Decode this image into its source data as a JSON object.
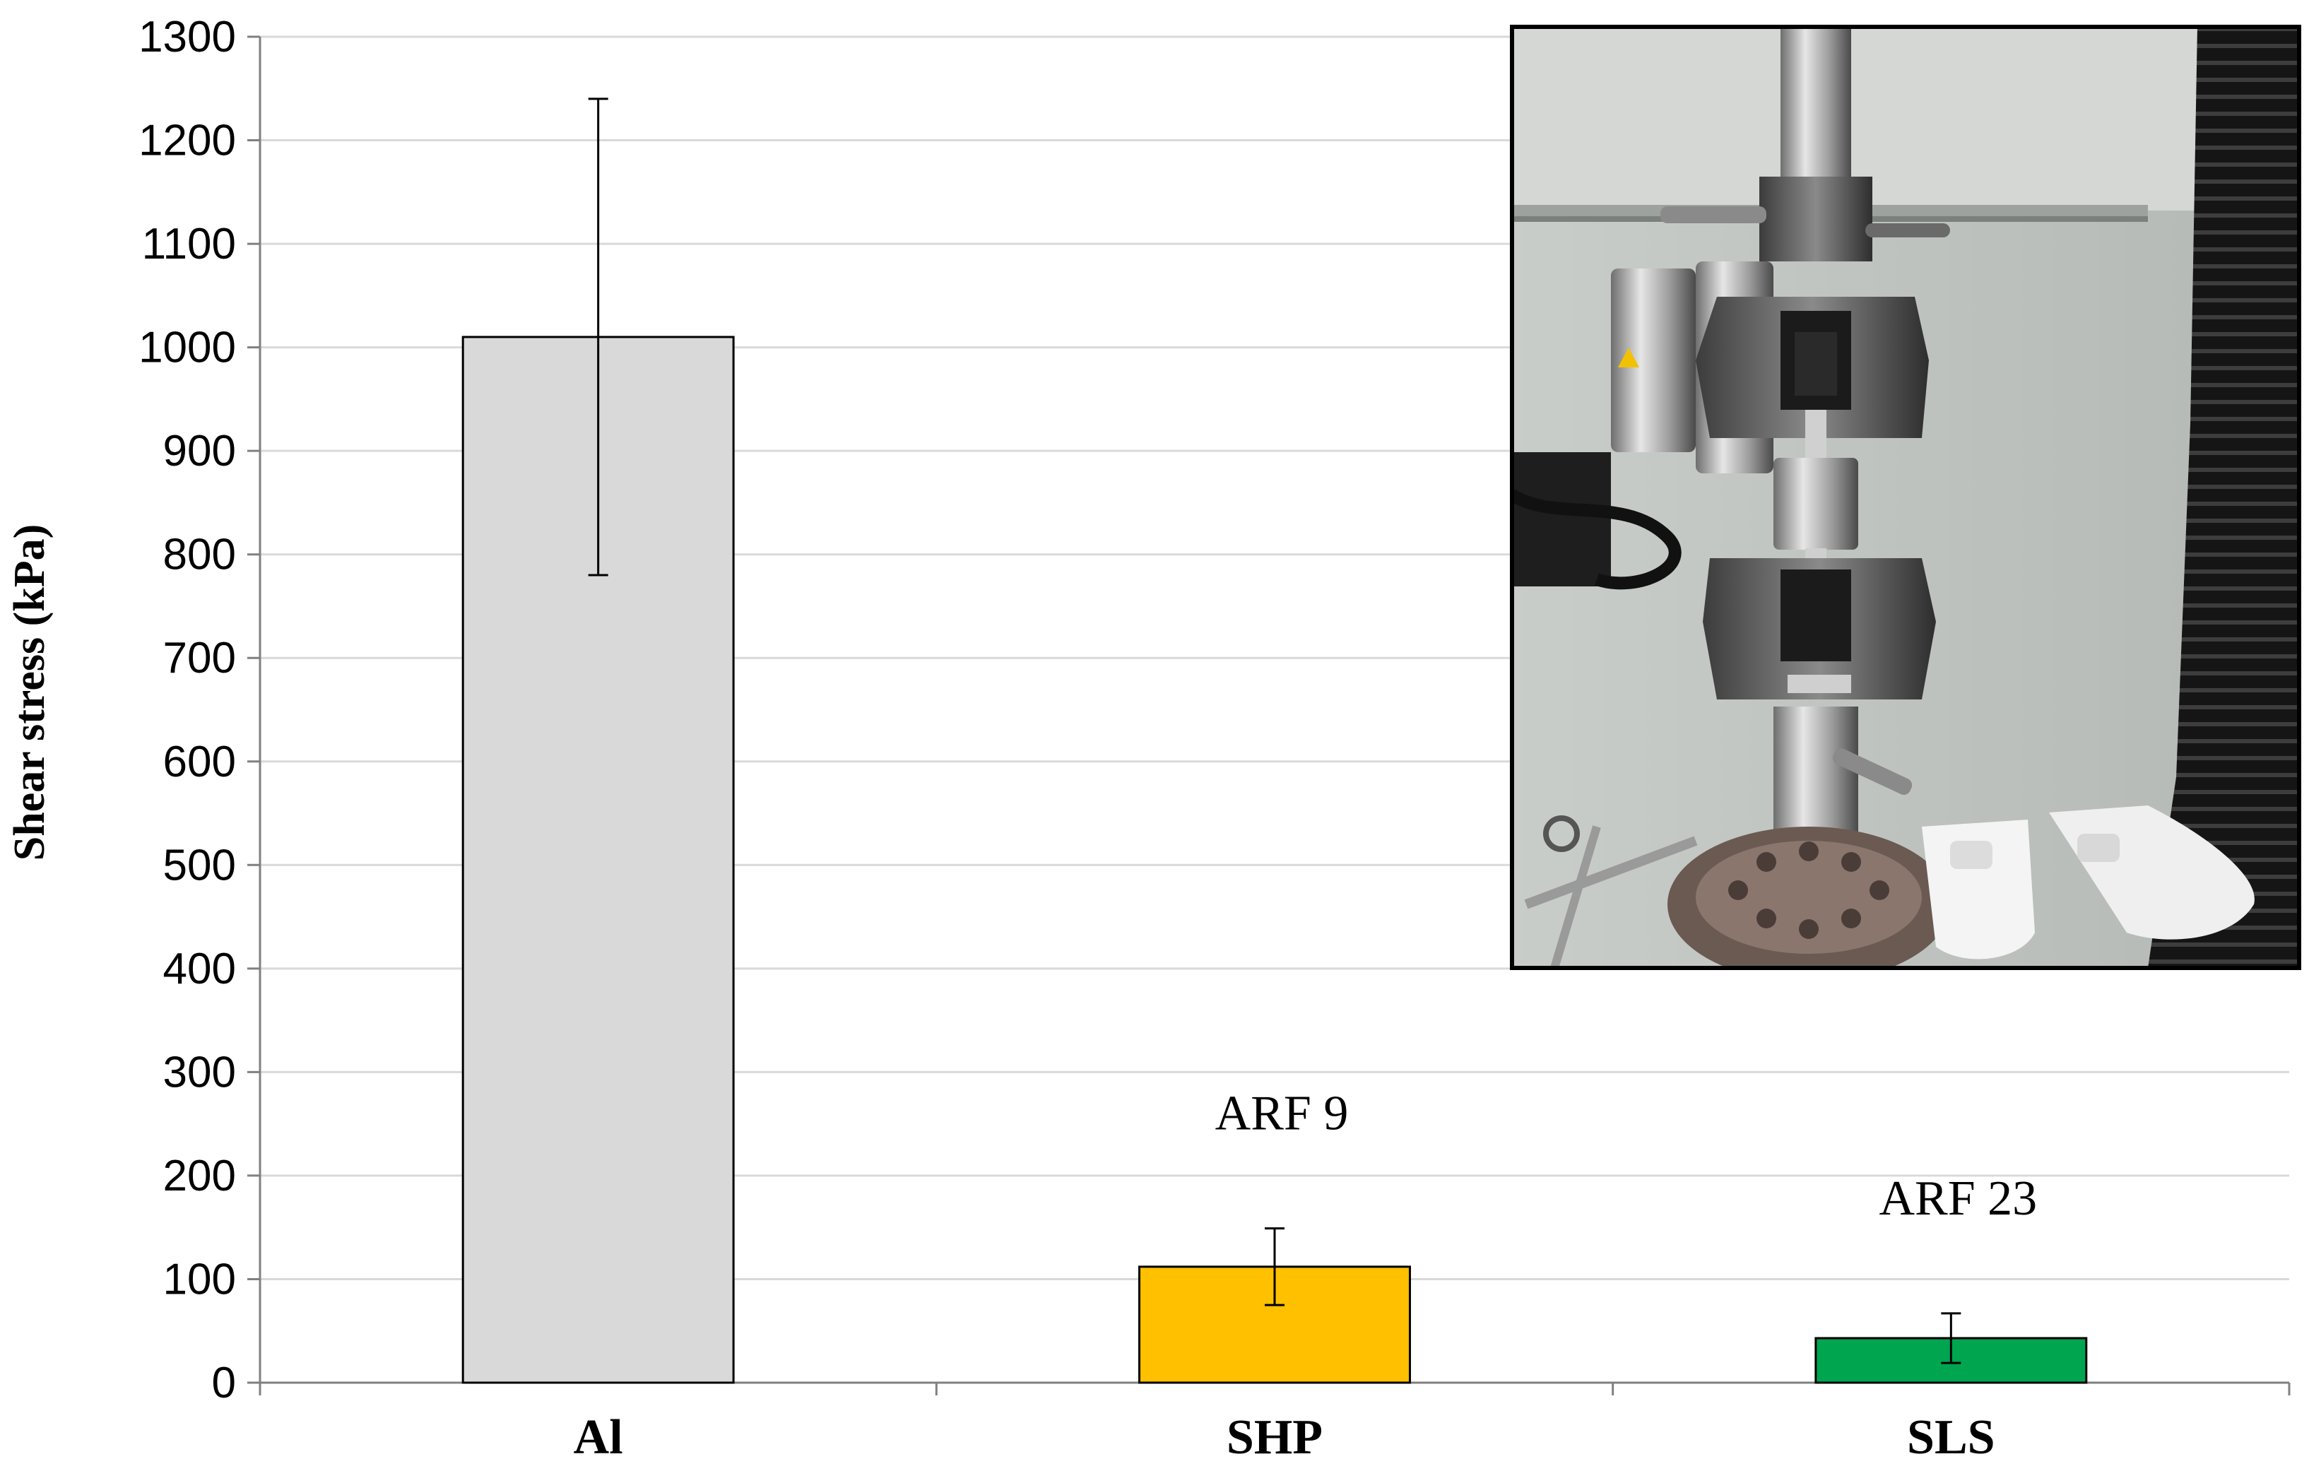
{
  "chart_data": {
    "type": "bar",
    "title": "",
    "xlabel": "",
    "ylabel": "Shear stress (kPa)",
    "ylim": [
      0,
      1300
    ],
    "ytick_step": 100,
    "grid": true,
    "legend": "none",
    "categories": [
      "Al",
      "SHP",
      "SLS"
    ],
    "values": [
      1010,
      112,
      43
    ],
    "error": [
      230,
      37,
      24
    ],
    "colors": [
      "#d9d9d9",
      "#ffc000",
      "#00a550"
    ],
    "annotations": [
      {
        "category": "SHP",
        "text": "ARF 9"
      },
      {
        "category": "SLS",
        "text": "ARF 23"
      }
    ]
  },
  "inset_photo": {
    "subject": "tensile-testing-machine-photo"
  }
}
